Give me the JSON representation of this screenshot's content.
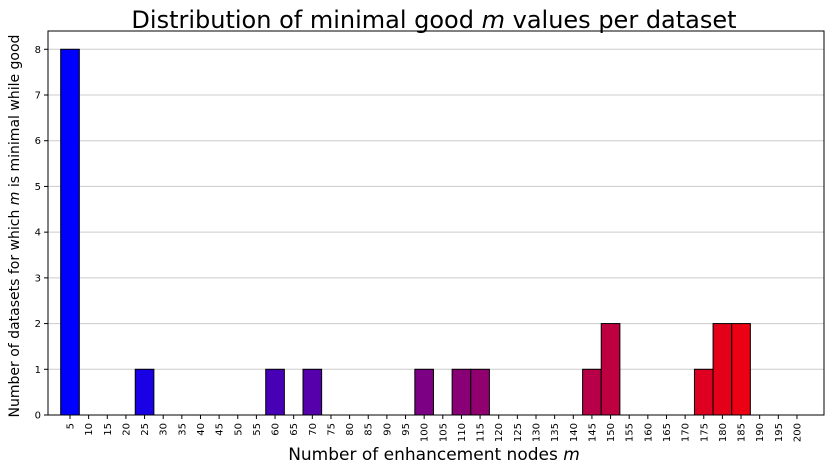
{
  "chart_data": {
    "type": "bar",
    "title_prefix": "Distribution of minimal good ",
    "title_var": "m",
    "title_suffix": " values per dataset",
    "xlabel_prefix": "Number of enhancement nodes ",
    "xlabel_var": "m",
    "ylabel_prefix": "Number of datasets for which ",
    "ylabel_var": "m",
    "ylabel_suffix": " is minimal while good",
    "categories": [
      "5",
      "10",
      "15",
      "20",
      "25",
      "30",
      "35",
      "40",
      "45",
      "50",
      "55",
      "60",
      "65",
      "70",
      "75",
      "80",
      "85",
      "90",
      "95",
      "100",
      "105",
      "110",
      "115",
      "120",
      "125",
      "130",
      "135",
      "140",
      "145",
      "150",
      "155",
      "160",
      "165",
      "170",
      "175",
      "180",
      "185",
      "190",
      "195",
      "200"
    ],
    "values": [
      8,
      0,
      0,
      0,
      1,
      0,
      0,
      0,
      0,
      0,
      0,
      1,
      0,
      1,
      0,
      0,
      0,
      0,
      0,
      1,
      0,
      1,
      1,
      0,
      0,
      0,
      0,
      0,
      1,
      2,
      0,
      0,
      0,
      0,
      1,
      2,
      2,
      0,
      0,
      0
    ],
    "ylim": [
      0,
      8.4
    ],
    "yticks": [
      0,
      1,
      2,
      3,
      4,
      5,
      6,
      7,
      8
    ],
    "grid": "horizontal",
    "colors": {
      "start": "#0000ff",
      "end": "#ff0000",
      "edge": "#000000",
      "grid": "#cccccc",
      "frame": "#000000"
    }
  }
}
